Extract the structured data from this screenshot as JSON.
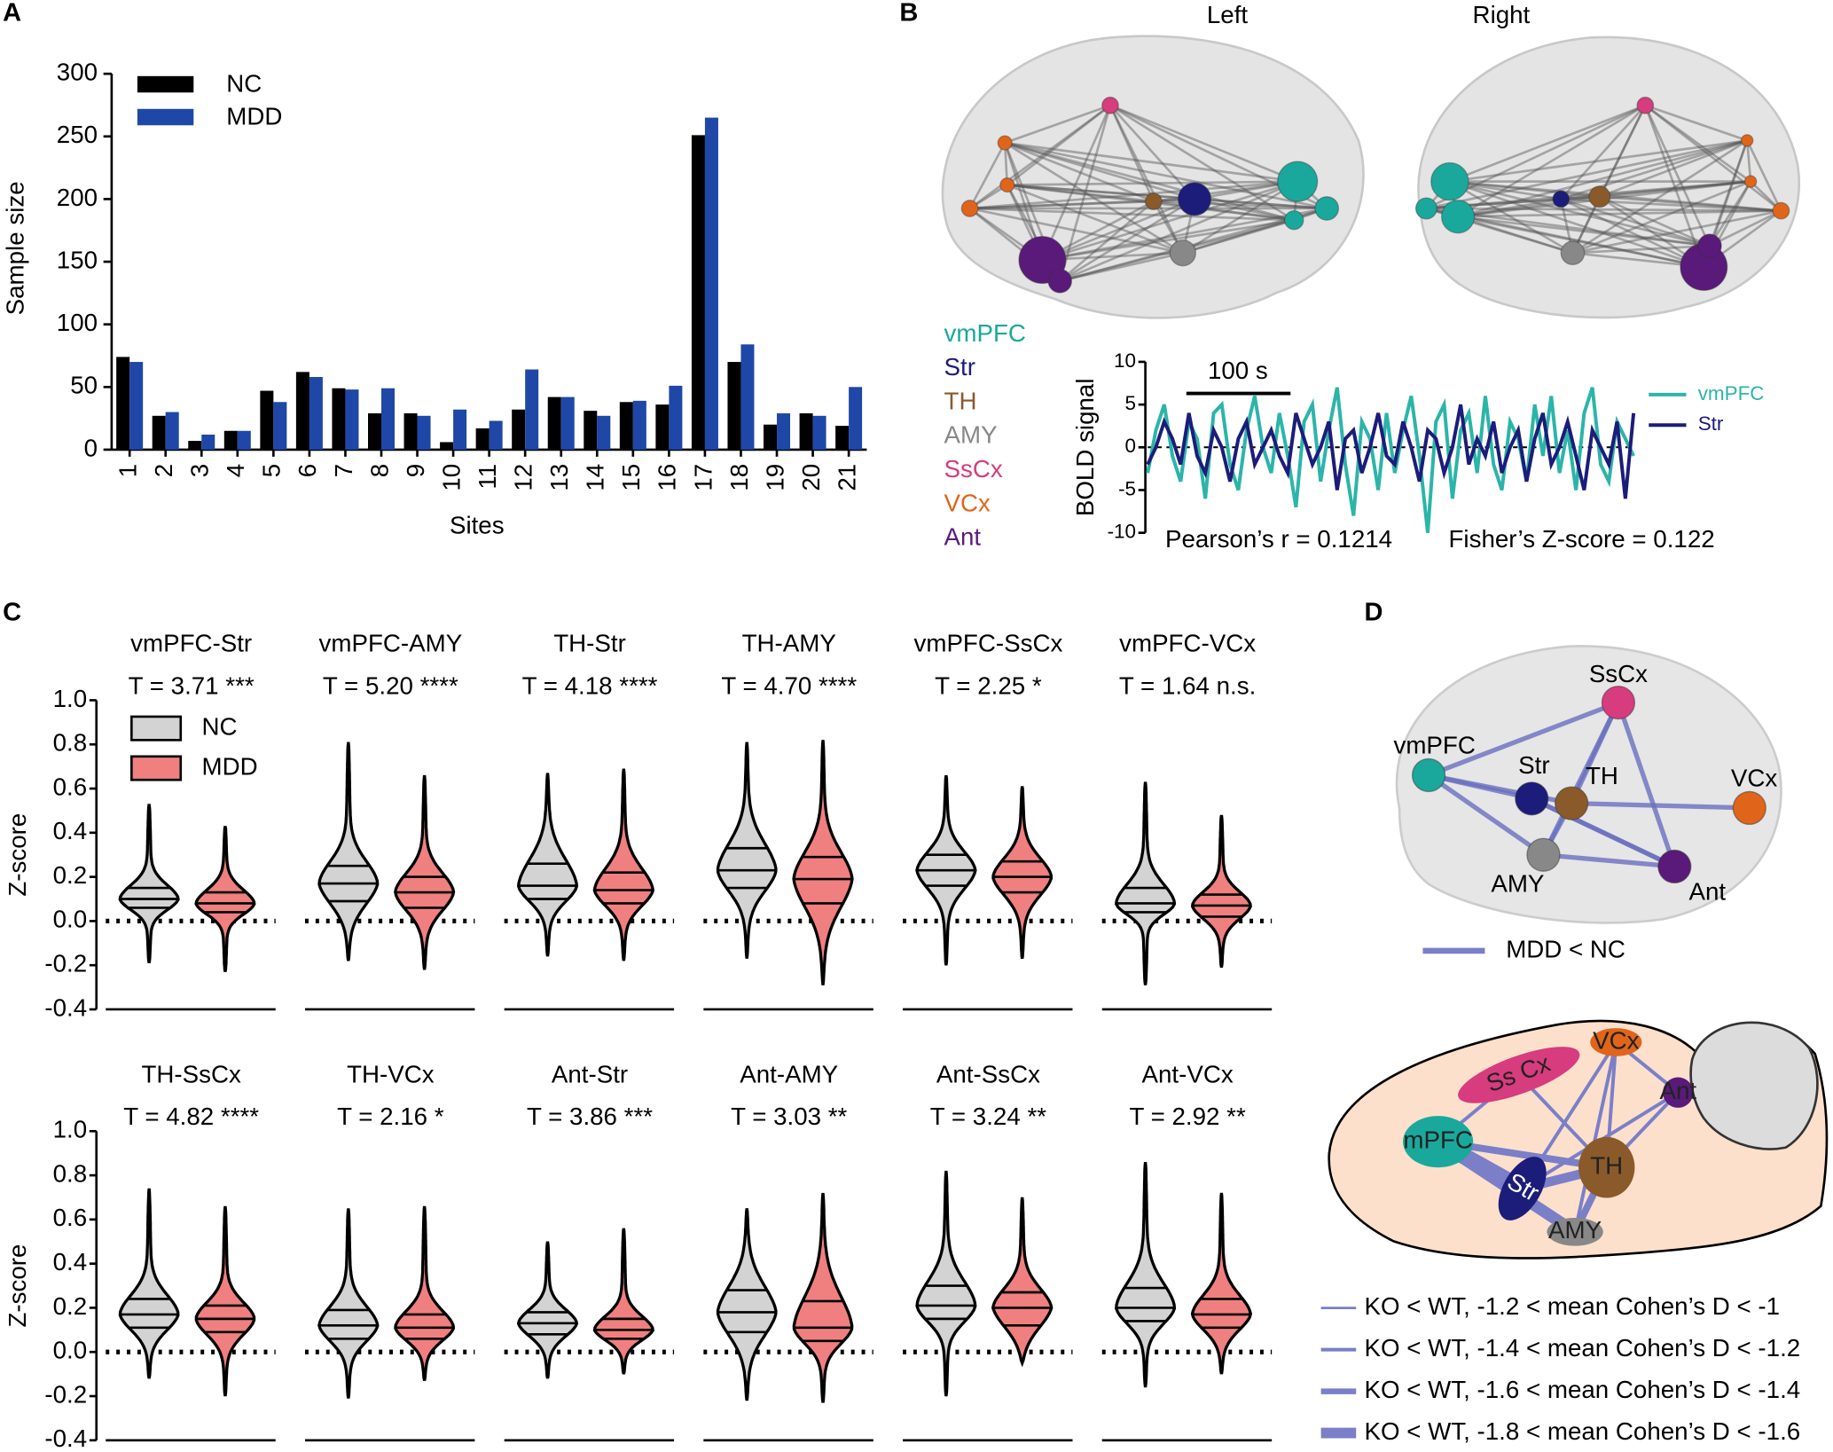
{
  "panel_labels": [
    "A",
    "B",
    "C",
    "D"
  ],
  "brain_views": [
    "Left",
    "Right"
  ],
  "regions": [
    {
      "name": "vmPFC",
      "color": "#1aa89c"
    },
    {
      "name": "Str",
      "color": "#1c1c7a"
    },
    {
      "name": "TH",
      "color": "#8b5a2b"
    },
    {
      "name": "AMY",
      "color": "#888888"
    },
    {
      "name": "SsCx",
      "color": "#d63c7e"
    },
    {
      "name": "VCx",
      "color": "#e0651a"
    },
    {
      "name": "Ant",
      "color": "#5a1a7a"
    }
  ],
  "panel_d": {
    "nodes": [
      "SsCx",
      "vmPFC",
      "Str",
      "TH",
      "VCx",
      "AMY",
      "Ant"
    ],
    "legend": "MDD < NC",
    "mouse_nodes": [
      "Ss Cx",
      "VCx",
      "Ant",
      "mPFC",
      "Str",
      "TH",
      "AMY"
    ],
    "mouse_legend": [
      "KO < WT, -1.2 < mean Cohen’s D < -1",
      "KO < WT, -1.4 < mean Cohen’s D < -1.2",
      "KO < WT, -1.6 < mean Cohen’s D < -1.4",
      "KO < WT, -1.8 < mean Cohen’s D < -1.6"
    ]
  },
  "chart_data": [
    {
      "type": "bar",
      "ylabel": "Sample size",
      "xlabel": "Sites",
      "categories": [
        "1",
        "2",
        "3",
        "4",
        "5",
        "6",
        "7",
        "8",
        "9",
        "10",
        "11",
        "12",
        "13",
        "14",
        "15",
        "16",
        "17",
        "18",
        "19",
        "20",
        "21"
      ],
      "series": [
        {
          "name": "NC",
          "color": "#000000",
          "values": [
            74,
            27,
            7,
            15,
            47,
            62,
            49,
            29,
            29,
            6,
            17,
            32,
            42,
            31,
            38,
            36,
            251,
            70,
            20,
            29,
            19
          ]
        },
        {
          "name": "MDD",
          "color": "#1f47a8",
          "values": [
            70,
            30,
            12,
            15,
            38,
            58,
            48,
            49,
            27,
            32,
            23,
            64,
            42,
            27,
            39,
            51,
            265,
            84,
            29,
            27,
            50
          ]
        }
      ],
      "ylim": [
        0,
        300
      ],
      "yticks": [
        0,
        50,
        100,
        150,
        200,
        250,
        300
      ]
    },
    {
      "type": "line",
      "ylabel": "BOLD signal",
      "scale_bar": "100 s",
      "annotations": [
        "Pearson’s r = 0.1214",
        "Fisher’s Z-score = 0.122"
      ],
      "ylim": [
        -10,
        10
      ],
      "yticks": [
        -10,
        -5,
        0,
        5,
        10
      ],
      "series": [
        {
          "name": "vmPFC",
          "color": "#2bb5a8",
          "values": [
            -3,
            2,
            5,
            -1,
            -4,
            3,
            1,
            -6,
            4,
            5,
            -2,
            -5,
            2,
            6,
            0,
            -3,
            4,
            -1,
            -7,
            3,
            5,
            -4,
            2,
            7,
            -2,
            -8,
            3,
            1,
            -5,
            4,
            -3,
            2,
            6,
            -1,
            -10,
            3,
            5,
            -6,
            2,
            4,
            -3,
            6,
            -2,
            -5,
            3,
            1,
            -4,
            5,
            -1,
            6,
            -3,
            2,
            -5,
            4,
            7,
            -2,
            -4,
            3,
            1,
            -1
          ]
        },
        {
          "name": "Str",
          "color": "#1c1c7a",
          "values": [
            -2,
            0,
            3,
            1,
            -2,
            4,
            -1,
            -3,
            2,
            0,
            -4,
            1,
            3,
            -2,
            0,
            2,
            -1,
            -3,
            4,
            1,
            -2,
            0,
            3,
            -5,
            1,
            2,
            -3,
            0,
            4,
            -1,
            -2,
            3,
            0,
            -4,
            2,
            1,
            -3,
            0,
            5,
            -2,
            1,
            -1,
            3,
            -3,
            0,
            2,
            -4,
            1,
            4,
            -2,
            0,
            3,
            -1,
            -5,
            2,
            0,
            -2,
            3,
            -6,
            4
          ]
        }
      ]
    },
    {
      "type": "violin",
      "ylabel": "Z-score",
      "ylim": [
        -0.4,
        1.0
      ],
      "yticks": [
        -0.4,
        -0.2,
        {
          "value": 0,
          "label": "0.0"
        },
        0.2,
        0.4,
        0.6,
        0.8,
        {
          "value": 1,
          "label": "1.0"
        }
      ],
      "series": [
        {
          "name": "NC",
          "color": "#d3d3d3"
        },
        {
          "name": "MDD",
          "color": "#f08080"
        }
      ],
      "panels": [
        {
          "title": "vmPFC-Str",
          "stat": "T = 3.71 ***",
          "groups": [
            {
              "min": -0.19,
              "q1": 0.06,
              "median": 0.1,
              "q3": 0.15,
              "max": 0.53
            },
            {
              "min": -0.23,
              "q1": 0.04,
              "median": 0.08,
              "q3": 0.13,
              "max": 0.43
            }
          ]
        },
        {
          "title": "vmPFC-AMY",
          "stat": "T = 5.20 ****",
          "groups": [
            {
              "min": -0.18,
              "q1": 0.09,
              "median": 0.17,
              "q3": 0.25,
              "max": 0.81
            },
            {
              "min": -0.22,
              "q1": 0.06,
              "median": 0.13,
              "q3": 0.2,
              "max": 0.66
            }
          ]
        },
        {
          "title": "TH-Str",
          "stat": "T = 4.18 ****",
          "groups": [
            {
              "min": -0.16,
              "q1": 0.1,
              "median": 0.16,
              "q3": 0.26,
              "max": 0.67
            },
            {
              "min": -0.18,
              "q1": 0.08,
              "median": 0.14,
              "q3": 0.22,
              "max": 0.69
            }
          ]
        },
        {
          "title": "TH-AMY",
          "stat": "T = 4.70 ****",
          "groups": [
            {
              "min": -0.17,
              "q1": 0.15,
              "median": 0.23,
              "q3": 0.33,
              "max": 0.81
            },
            {
              "min": -0.29,
              "q1": 0.08,
              "median": 0.19,
              "q3": 0.29,
              "max": 0.82
            }
          ]
        },
        {
          "title": "vmPFC-SsCx",
          "stat": "T = 2.25 *",
          "groups": [
            {
              "min": -0.2,
              "q1": 0.16,
              "median": 0.23,
              "q3": 0.3,
              "max": 0.66
            },
            {
              "min": -0.17,
              "q1": 0.13,
              "median": 0.2,
              "q3": 0.27,
              "max": 0.61
            }
          ]
        },
        {
          "title": "vmPFC-VCx",
          "stat": "T = 1.64 n.s.",
          "groups": [
            {
              "min": -0.29,
              "q1": 0.04,
              "median": 0.08,
              "q3": 0.15,
              "max": 0.63
            },
            {
              "min": -0.21,
              "q1": 0.02,
              "median": 0.07,
              "q3": 0.12,
              "max": 0.48
            }
          ]
        }
      ]
    },
    {
      "type": "violin",
      "ylabel": "Z-score",
      "ylim": [
        -0.4,
        1.0
      ],
      "yticks": [
        -0.4,
        -0.2,
        {
          "value": 0,
          "label": "0.0"
        },
        0.2,
        0.4,
        0.6,
        0.8,
        {
          "value": 1,
          "label": "1.0"
        }
      ],
      "colors": [
        "#d3d3d3",
        "#f08080"
      ],
      "panels": [
        {
          "title": "TH-SsCx",
          "stat": "T = 4.82 ****",
          "groups": [
            {
              "min": -0.12,
              "q1": 0.11,
              "median": 0.17,
              "q3": 0.24,
              "max": 0.74
            },
            {
              "min": -0.2,
              "q1": 0.09,
              "median": 0.15,
              "q3": 0.21,
              "max": 0.66
            }
          ]
        },
        {
          "title": "TH-VCx",
          "stat": "T = 2.16 *",
          "groups": [
            {
              "min": -0.21,
              "q1": 0.06,
              "median": 0.12,
              "q3": 0.19,
              "max": 0.65
            },
            {
              "min": -0.13,
              "q1": 0.06,
              "median": 0.11,
              "q3": 0.17,
              "max": 0.66
            }
          ]
        },
        {
          "title": "Ant-Str",
          "stat": "T = 3.86 ***",
          "groups": [
            {
              "min": -0.12,
              "q1": 0.08,
              "median": 0.13,
              "q3": 0.18,
              "max": 0.5
            },
            {
              "min": -0.1,
              "q1": 0.06,
              "median": 0.1,
              "q3": 0.15,
              "max": 0.56
            }
          ]
        },
        {
          "title": "Ant-AMY",
          "stat": "T = 3.03 **",
          "groups": [
            {
              "min": -0.22,
              "q1": 0.09,
              "median": 0.18,
              "q3": 0.28,
              "max": 0.65
            },
            {
              "min": -0.23,
              "q1": 0.05,
              "median": 0.11,
              "q3": 0.23,
              "max": 0.72
            }
          ]
        },
        {
          "title": "Ant-SsCx",
          "stat": "T = 3.24 **",
          "groups": [
            {
              "min": -0.2,
              "q1": 0.15,
              "median": 0.21,
              "q3": 0.3,
              "max": 0.82
            },
            {
              "min": -0.05,
              "q1": 0.12,
              "median": 0.2,
              "q3": 0.27,
              "max": 0.7
            }
          ]
        },
        {
          "title": "Ant-VCx",
          "stat": "T = 2.92 **",
          "groups": [
            {
              "min": -0.16,
              "q1": 0.14,
              "median": 0.2,
              "q3": 0.29,
              "max": 0.86
            },
            {
              "min": -0.1,
              "q1": 0.11,
              "median": 0.17,
              "q3": 0.24,
              "max": 0.72
            }
          ]
        }
      ]
    }
  ]
}
